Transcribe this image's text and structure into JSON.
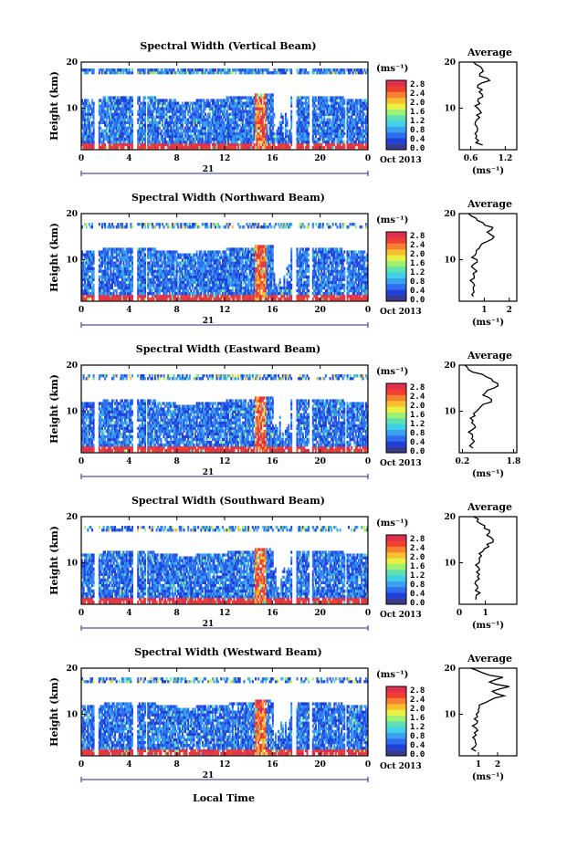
{
  "figure": {
    "xlabel": "Local Time",
    "date_label": "Oct 2013",
    "day_label": "21",
    "ylabel": "Height (km)",
    "colorbar_unit": "(ms⁻¹)",
    "avg_title": "Average",
    "avg_xlabel": "(ms⁻¹)"
  },
  "colorbar": {
    "ticks": [
      "2.8",
      "2.4",
      "2.0",
      "1.6",
      "1.2",
      "0.8",
      "0.4",
      "0.0"
    ],
    "colors": [
      "#3a3a8a",
      "#2040d8",
      "#2f6ef0",
      "#3aa0f0",
      "#40d0e8",
      "#5ee0b0",
      "#9ef070",
      "#e8f040",
      "#f8c030",
      "#f88030",
      "#f04030",
      "#e03050"
    ]
  },
  "chart_data": [
    {
      "type": "heatmap",
      "title": "Spectral Width (Vertical Beam)",
      "xticks": [
        "0",
        "4",
        "8",
        "12",
        "16",
        "20",
        "0"
      ],
      "yticks": [
        "20",
        "10"
      ],
      "xlim": [
        0,
        24
      ],
      "ylim": [
        1,
        20
      ],
      "avg": {
        "title": "Average",
        "xticks": [
          "0.6",
          "1.2"
        ],
        "yticks": [
          "20",
          "10"
        ],
        "xlim": [
          0.4,
          1.4
        ],
        "height": [
          2,
          3,
          4,
          5,
          6,
          7,
          8,
          9,
          10,
          11,
          12,
          13,
          14,
          15,
          16,
          17,
          18,
          19,
          20
        ],
        "width": [
          0.78,
          0.72,
          0.7,
          0.74,
          0.72,
          0.7,
          0.73,
          0.76,
          0.72,
          0.74,
          0.72,
          0.78,
          0.82,
          0.72,
          0.95,
          0.78,
          0.84,
          0.74,
          0.62
        ]
      }
    },
    {
      "type": "heatmap",
      "title": "Spectral Width (Northward Beam)",
      "xticks": [
        "0",
        "4",
        "8",
        "12",
        "16",
        "20",
        "0"
      ],
      "yticks": [
        "20",
        "10"
      ],
      "xlim": [
        0,
        24
      ],
      "ylim": [
        1,
        20
      ],
      "avg": {
        "title": "Average",
        "xticks": [
          "1",
          "2"
        ],
        "yticks": [
          "20",
          "10"
        ],
        "xlim": [
          0,
          2.3
        ],
        "height": [
          2,
          3,
          4,
          5,
          6,
          7,
          8,
          9,
          10,
          11,
          12,
          13,
          14,
          15,
          16,
          17,
          18,
          19,
          20
        ],
        "width": [
          0.6,
          0.55,
          0.58,
          0.56,
          0.6,
          0.58,
          0.62,
          0.6,
          0.65,
          0.62,
          0.7,
          0.9,
          1.2,
          1.4,
          1.1,
          1.3,
          0.9,
          0.7,
          0.4
        ]
      }
    },
    {
      "type": "heatmap",
      "title": "Spectral Width (Eastward Beam)",
      "xticks": [
        "0",
        "4",
        "8",
        "12",
        "16",
        "20",
        "0"
      ],
      "yticks": [
        "20",
        "10"
      ],
      "xlim": [
        0,
        24
      ],
      "ylim": [
        1,
        20
      ],
      "avg": {
        "title": "Average",
        "xticks": [
          "0.2",
          "1.8"
        ],
        "yticks": [
          "20",
          "10"
        ],
        "xlim": [
          0.1,
          1.9
        ],
        "height": [
          2,
          3,
          4,
          5,
          6,
          7,
          8,
          9,
          10,
          11,
          12,
          13,
          14,
          15,
          16,
          17,
          18,
          19,
          20
        ],
        "width": [
          0.55,
          0.5,
          0.52,
          0.48,
          0.5,
          0.55,
          0.52,
          0.55,
          0.6,
          0.75,
          1.05,
          1.0,
          0.9,
          1.2,
          1.3,
          1.1,
          0.8,
          0.4,
          0.3
        ]
      }
    },
    {
      "type": "heatmap",
      "title": "Spectral Width (Southward Beam)",
      "xticks": [
        "0",
        "4",
        "8",
        "12",
        "16",
        "20",
        "0"
      ],
      "yticks": [
        "20",
        "10"
      ],
      "xlim": [
        0,
        24
      ],
      "ylim": [
        1,
        20
      ],
      "avg": {
        "title": "Average",
        "xticks": [
          "0",
          "1"
        ],
        "yticks": [
          "20",
          "10"
        ],
        "xlim": [
          0,
          2.2
        ],
        "height": [
          2,
          3,
          4,
          5,
          6,
          7,
          8,
          9,
          10,
          11,
          12,
          13,
          14,
          15,
          16,
          17,
          18,
          19,
          20
        ],
        "width": [
          0.7,
          0.65,
          0.68,
          0.66,
          0.7,
          0.68,
          0.72,
          0.7,
          0.75,
          0.78,
          0.8,
          0.95,
          1.1,
          1.25,
          1.05,
          1.2,
          0.95,
          0.7,
          0.5
        ]
      }
    },
    {
      "type": "heatmap",
      "title": "Spectral Width (Westward Beam)",
      "xticks": [
        "0",
        "4",
        "8",
        "12",
        "16",
        "20",
        "0"
      ],
      "yticks": [
        "20",
        "10"
      ],
      "xlim": [
        0,
        24
      ],
      "ylim": [
        1,
        20
      ],
      "avg": {
        "title": "Average",
        "xticks": [
          "1",
          "2"
        ],
        "yticks": [
          "20",
          "10"
        ],
        "xlim": [
          0,
          3.0
        ],
        "height": [
          2,
          3,
          4,
          5,
          6,
          7,
          8,
          9,
          10,
          11,
          12,
          13,
          14,
          15,
          16,
          17,
          18,
          19,
          20
        ],
        "width": [
          0.9,
          0.75,
          0.8,
          0.78,
          0.82,
          0.8,
          0.85,
          0.8,
          0.9,
          0.95,
          1.0,
          1.6,
          2.4,
          1.8,
          2.6,
          1.5,
          2.2,
          1.2,
          0.6
        ]
      }
    }
  ]
}
